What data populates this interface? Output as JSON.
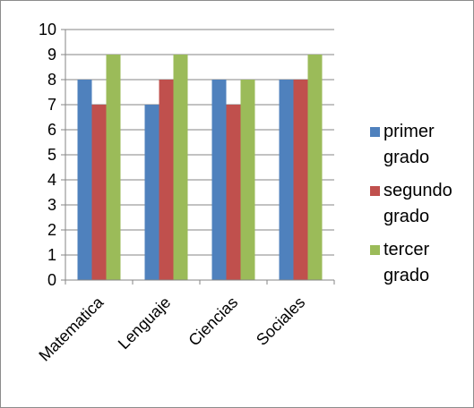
{
  "chart_data": {
    "type": "bar",
    "categories": [
      "Matematica",
      "Lenguaje",
      "Ciencias",
      "Sociales"
    ],
    "series": [
      {
        "name": "primer grado",
        "values": [
          8,
          7,
          8,
          8
        ],
        "color": "#4F81BD"
      },
      {
        "name": "segundo grado",
        "values": [
          7,
          8,
          7,
          8
        ],
        "color": "#C0504D"
      },
      {
        "name": "tercer grado",
        "values": [
          9,
          9,
          8,
          9
        ],
        "color": "#9BBB59"
      }
    ],
    "title": "",
    "xlabel": "",
    "ylabel": "",
    "ylim": [
      0,
      10
    ],
    "yticks": [
      "0",
      "1",
      "2",
      "3",
      "4",
      "5",
      "6",
      "7",
      "8",
      "9",
      "10"
    ],
    "grid": true,
    "legend_position": "right"
  }
}
